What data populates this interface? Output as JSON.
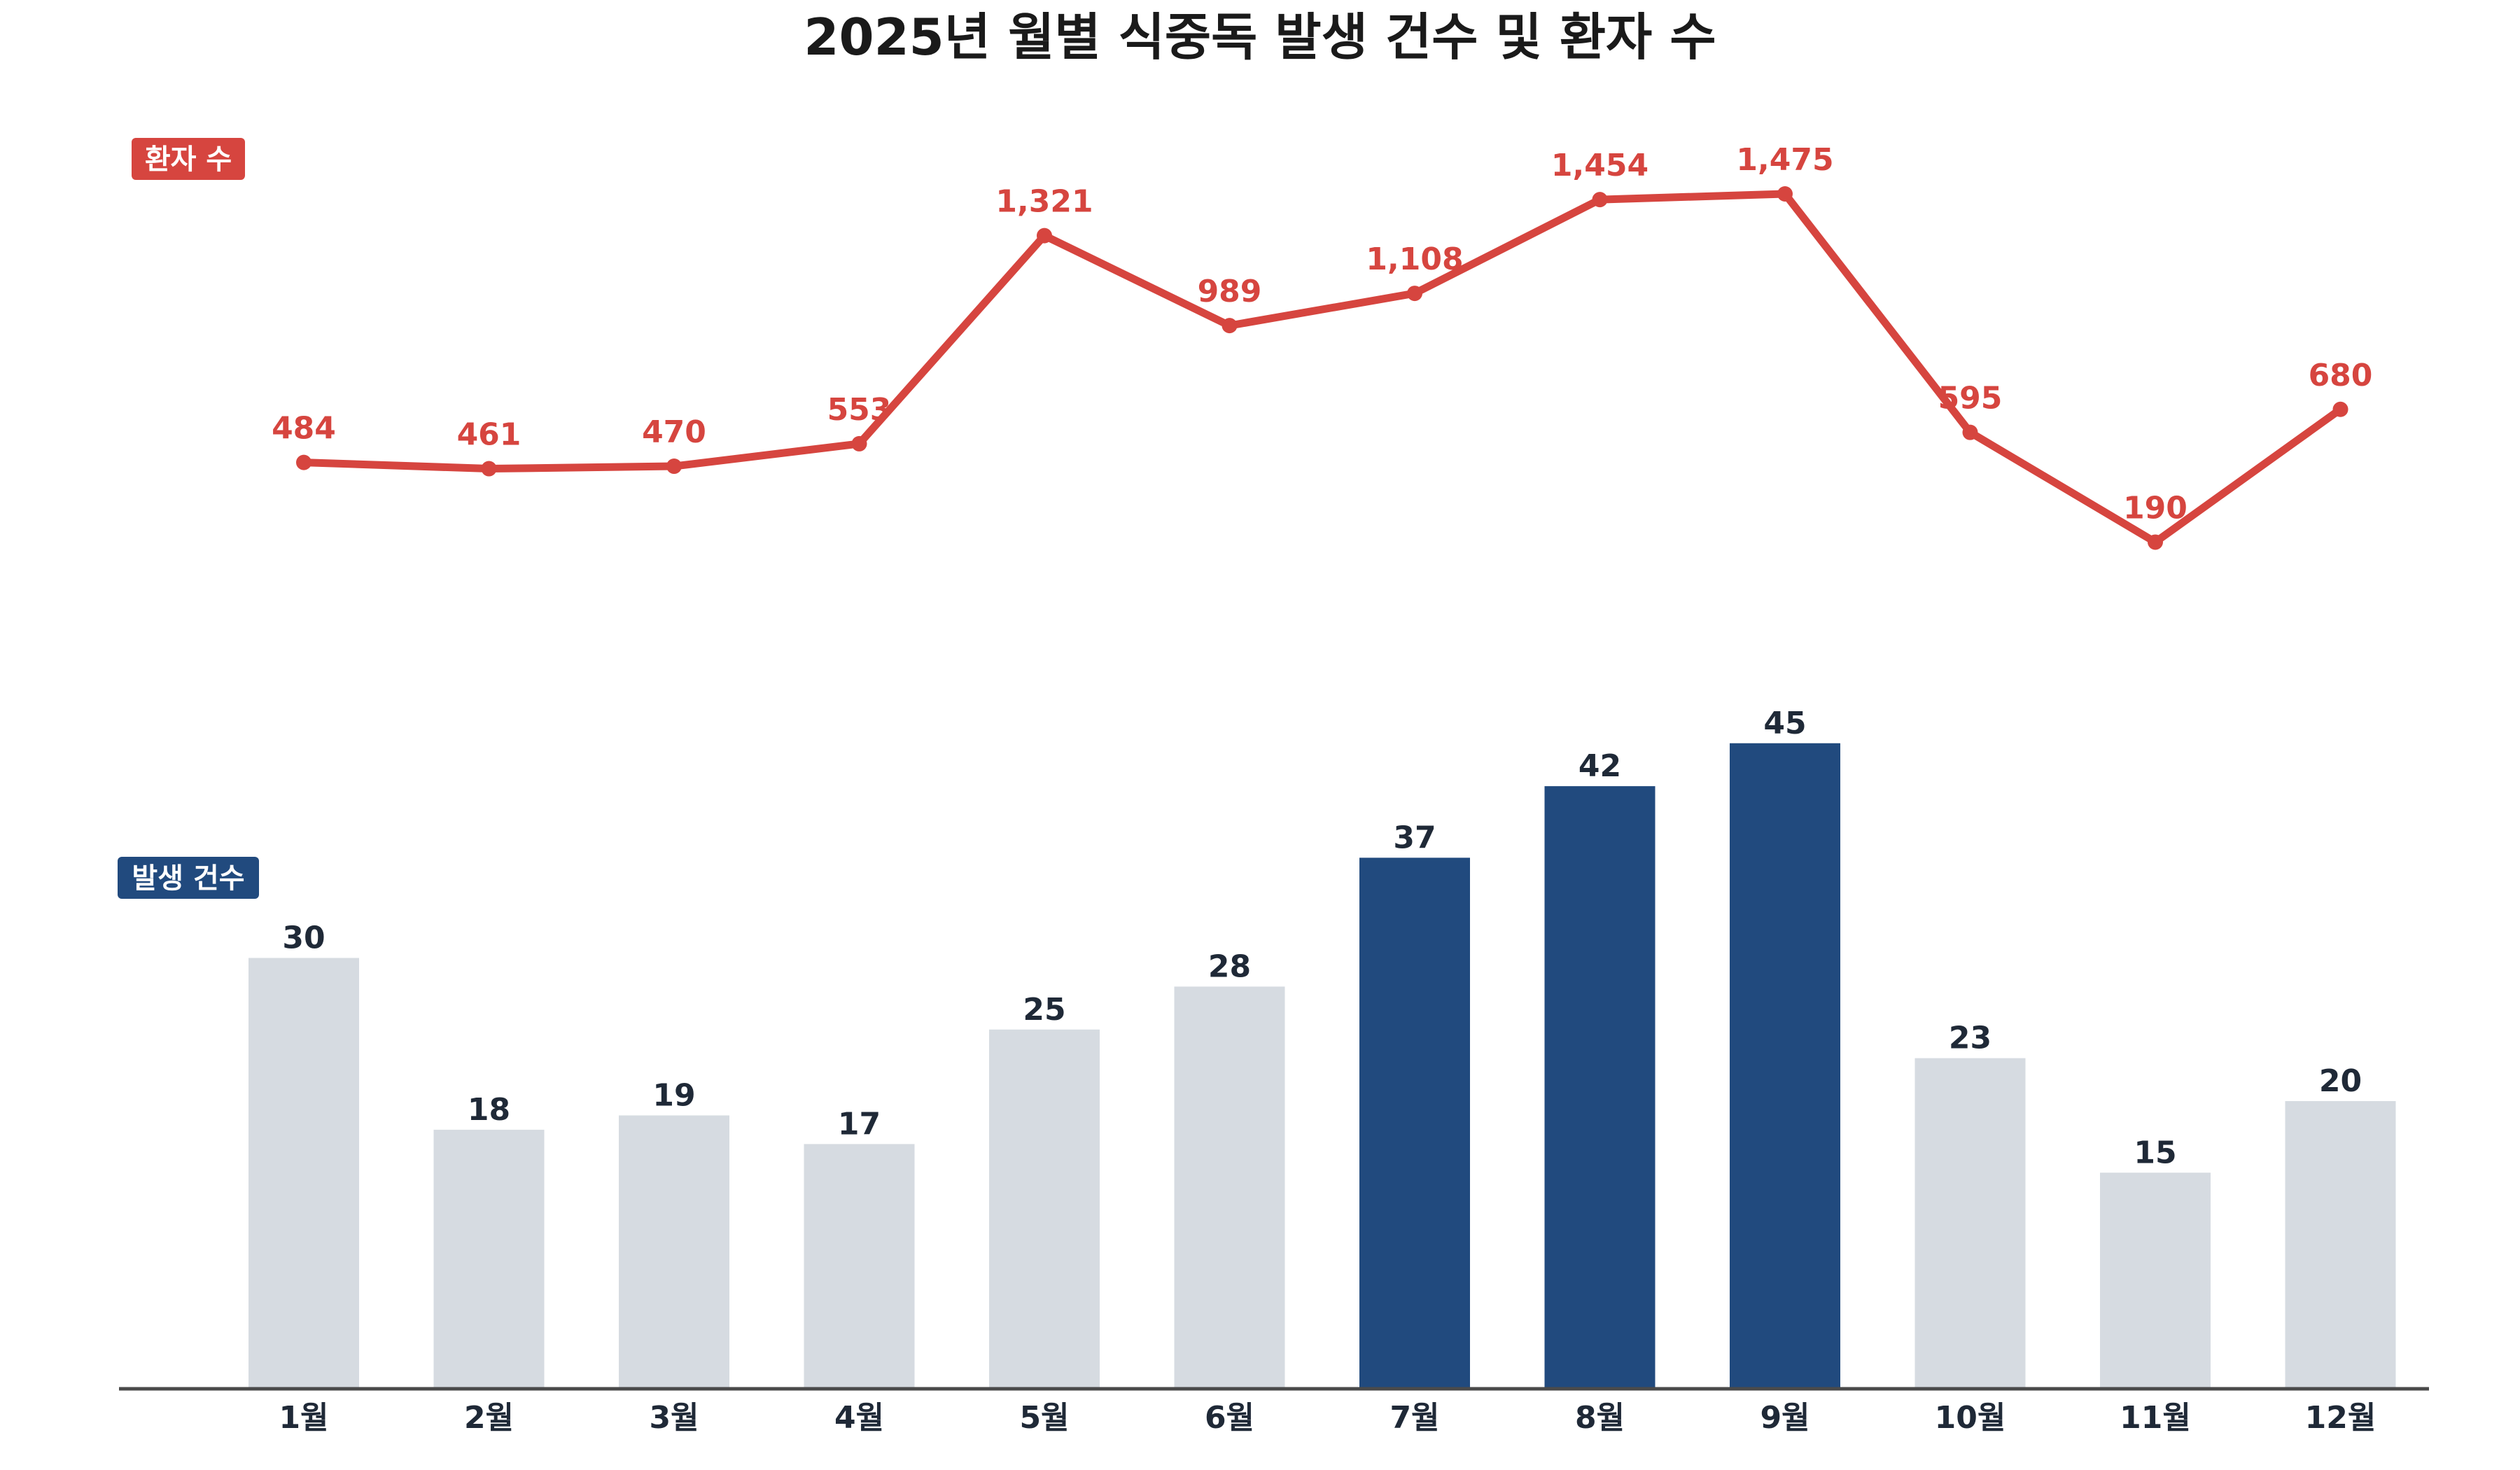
{
  "chart_data": {
    "type": "bar",
    "title": "2025년 월별 식중독 발생 건수 및 환자 수",
    "categories": [
      "1월",
      "2월",
      "3월",
      "4월",
      "5월",
      "6월",
      "7월",
      "8월",
      "9월",
      "10월",
      "11월",
      "12월"
    ],
    "series": [
      {
        "name": "발생 건수",
        "type": "bar",
        "values": [
          30,
          18,
          19,
          17,
          25,
          28,
          37,
          42,
          45,
          23,
          15,
          20
        ],
        "labels": [
          "30",
          "18",
          "19",
          "17",
          "25",
          "28",
          "37",
          "42",
          "45",
          "23",
          "15",
          "20"
        ],
        "highlighted": [
          false,
          false,
          false,
          false,
          false,
          false,
          true,
          true,
          true,
          false,
          false,
          false
        ]
      },
      {
        "name": "환자 수",
        "type": "line",
        "values": [
          484,
          461,
          470,
          553,
          1321,
          989,
          1108,
          1454,
          1475,
          595,
          190,
          680
        ],
        "labels": [
          "484",
          "461",
          "470",
          "553",
          "1,321",
          "989",
          "1,108",
          "1,454",
          "1,475",
          "595",
          "190",
          "680"
        ]
      }
    ],
    "colors": {
      "bar_default": "#d6dbe1",
      "bar_highlight": "#214a7e",
      "line": "#d6453f",
      "axis": "#4a4a4a"
    },
    "grid": false
  }
}
